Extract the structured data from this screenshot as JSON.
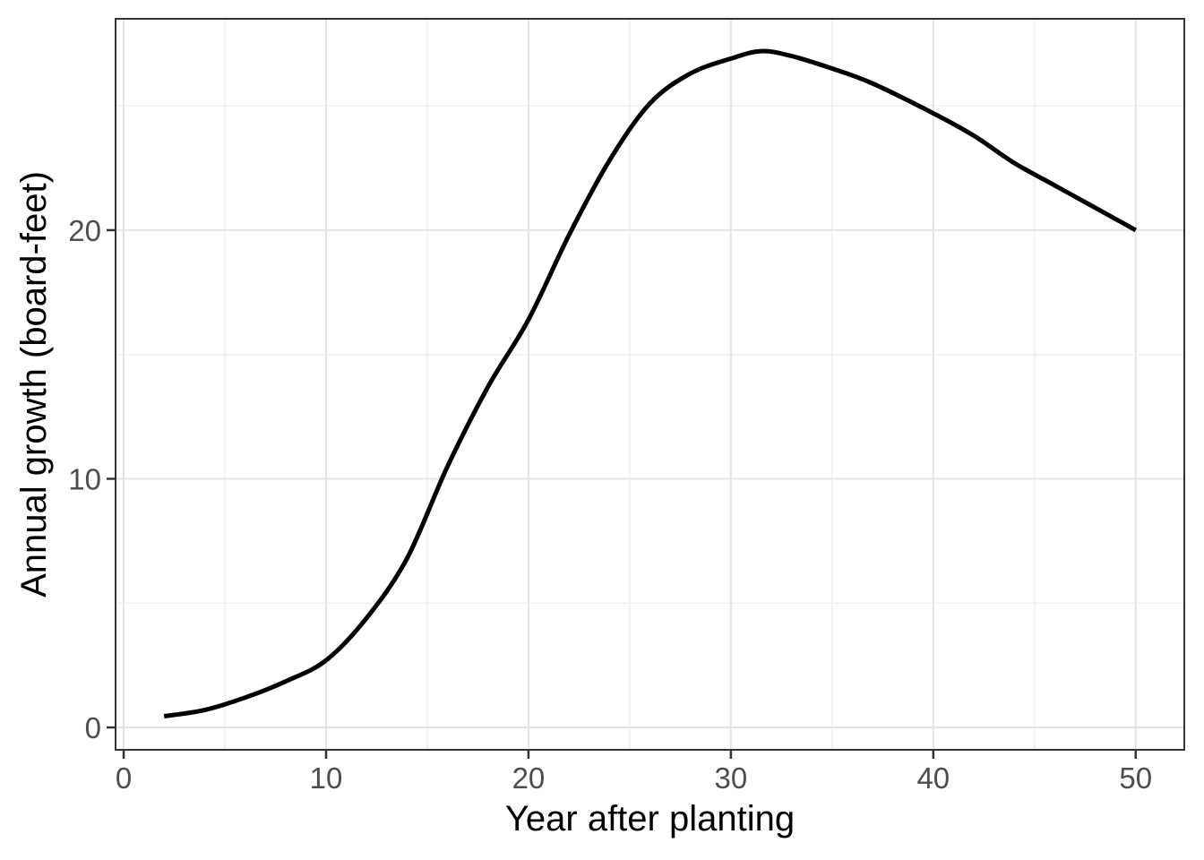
{
  "chart_data": {
    "type": "line",
    "title": "",
    "xlabel": "Year after planting",
    "ylabel": "Annual growth (board-feet)",
    "xlim": [
      -0.4,
      52.4
    ],
    "ylim": [
      -0.9,
      28.5
    ],
    "x_major_ticks": [
      0,
      10,
      20,
      30,
      40,
      50
    ],
    "x_minor_gridlines": [
      5,
      15,
      25,
      35,
      45
    ],
    "y_major_ticks": [
      0,
      10,
      20
    ],
    "y_minor_gridlines": [
      5,
      15,
      25
    ],
    "grid": "on",
    "legend": "none",
    "series": [
      {
        "name": "annual_growth",
        "color": "#000000",
        "points": [
          [
            2,
            0.45
          ],
          [
            4,
            0.7
          ],
          [
            6,
            1.2
          ],
          [
            8,
            1.85
          ],
          [
            10,
            2.7
          ],
          [
            12,
            4.4
          ],
          [
            14,
            6.8
          ],
          [
            16,
            10.5
          ],
          [
            18,
            13.7
          ],
          [
            20,
            16.4
          ],
          [
            22,
            19.8
          ],
          [
            24,
            22.8
          ],
          [
            26,
            25.1
          ],
          [
            28,
            26.3
          ],
          [
            30,
            26.9
          ],
          [
            31.5,
            27.2
          ],
          [
            33,
            27.0
          ],
          [
            35,
            26.5
          ],
          [
            37,
            25.9
          ],
          [
            40,
            24.7
          ],
          [
            42,
            23.8
          ],
          [
            44,
            22.7
          ],
          [
            46,
            21.8
          ],
          [
            48,
            20.9
          ],
          [
            50,
            20.0
          ]
        ]
      }
    ],
    "peak_point": {
      "x": 31.5,
      "y": 27.2
    },
    "start_point": {
      "x": 2,
      "y": 0.45
    },
    "end_point": {
      "x": 50,
      "y": 20
    },
    "colors": {
      "line": "#000000",
      "grid_major": "#e4e4e4",
      "grid_minor": "#f0f0f0",
      "panel_border": "#333333",
      "tick_mark": "#333333",
      "tick_label": "#4d4d4d",
      "axis_title": "#000000",
      "background": "#ffffff"
    }
  }
}
